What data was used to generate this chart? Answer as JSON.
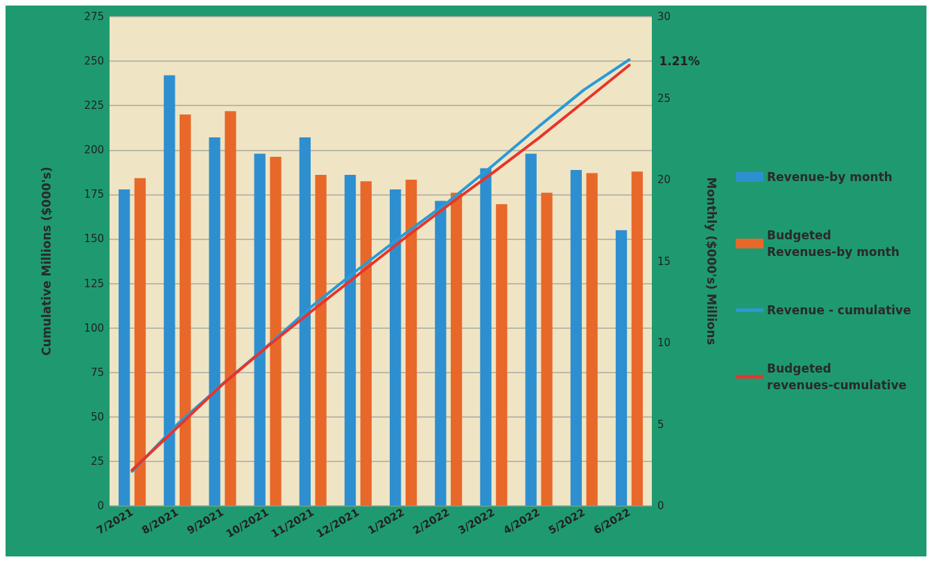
{
  "chart_data": {
    "type": "bar",
    "ylabel": "Cumulative Millions ($000's)",
    "y2label": "Monthly ($000's) Millions",
    "categories": [
      "7/2021",
      "8/2021",
      "9/2021",
      "10/2021",
      "11/2021",
      "12/2021",
      "1/2022",
      "2/2022",
      "3/2022",
      "4/2022",
      "5/2022",
      "6/2022"
    ],
    "series": [
      {
        "name": "Revenue-by month",
        "axis": "y2",
        "color": "#2e8fd0",
        "values": [
          19.4,
          26.4,
          22.6,
          21.6,
          22.6,
          20.3,
          19.4,
          18.7,
          20.7,
          21.6,
          20.6,
          16.9
        ]
      },
      {
        "name": "Budgeted Revenues-by month",
        "axis": "y2",
        "color": "#e8682a",
        "values": [
          20.1,
          24.0,
          24.2,
          21.4,
          20.3,
          19.9,
          20.0,
          19.2,
          18.5,
          19.2,
          20.4,
          20.5
        ]
      },
      {
        "name": "Revenue - cumulative",
        "type": "line",
        "color": "#2a9ad8",
        "values": [
          19.4,
          45.8,
          68.4,
          90.0,
          112.6,
          132.9,
          152.3,
          171.0,
          191.7,
          213.3,
          233.9,
          250.8
        ]
      },
      {
        "name": "Budgeted revenues-cumulative",
        "type": "line",
        "color": "#e8342a",
        "values": [
          20.1,
          44.1,
          68.3,
          89.7,
          110.0,
          129.9,
          149.9,
          169.1,
          187.6,
          206.8,
          227.2,
          247.7
        ]
      }
    ],
    "ylim": [
      0,
      275
    ],
    "yticks": [
      0,
      25,
      50,
      75,
      100,
      125,
      150,
      175,
      200,
      225,
      250,
      275
    ],
    "y2lim": [
      0,
      30
    ],
    "y2ticks": [
      0,
      5,
      10,
      15,
      20,
      25,
      30
    ],
    "annotations": [
      {
        "text": "1.21%",
        "x": "6/2022",
        "y": 250
      }
    ],
    "grid": "y",
    "legend": "right",
    "marker": "none",
    "line_style": "solid"
  }
}
